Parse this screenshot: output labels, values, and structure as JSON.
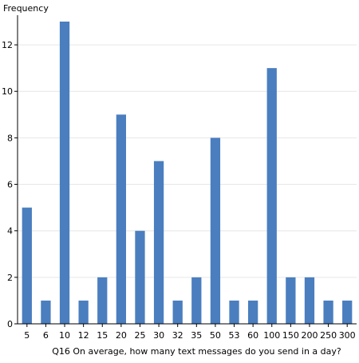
{
  "chart_data": {
    "type": "bar",
    "title": "",
    "xlabel": "Q16 On average, how many text messages do you send in a day?",
    "ylabel": "Frequency",
    "categories": [
      "5",
      "6",
      "10",
      "12",
      "15",
      "20",
      "25",
      "30",
      "32",
      "35",
      "50",
      "53",
      "60",
      "100",
      "150",
      "200",
      "250",
      "300"
    ],
    "values": [
      5,
      1,
      13,
      1,
      2,
      9,
      4,
      7,
      1,
      2,
      8,
      1,
      1,
      11,
      2,
      2,
      1,
      1
    ],
    "ylim": [
      0,
      13
    ],
    "yticks": [
      0,
      2,
      4,
      6,
      8,
      10,
      12
    ],
    "grid": true,
    "legend": "none",
    "bar_color": "#4a7ebf",
    "grid_color": "#e6e6e6"
  }
}
